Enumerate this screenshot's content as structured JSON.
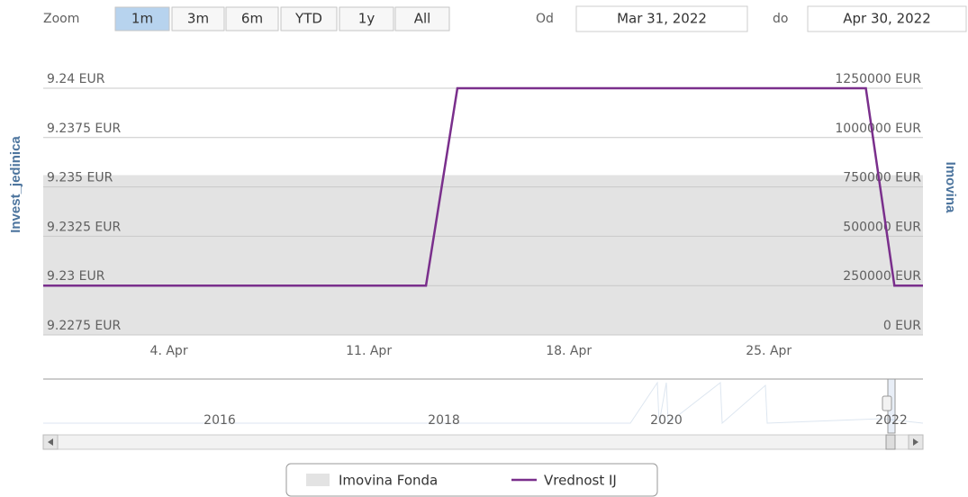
{
  "range_selector": {
    "label": "Zoom",
    "buttons": [
      "1m",
      "3m",
      "6m",
      "YTD",
      "1y",
      "All"
    ],
    "selected": 0,
    "from_label": "Od",
    "from": "Mar 31, 2022",
    "to_label": "do",
    "to": "Apr 30, 2022"
  },
  "chart_data": {
    "type": "line",
    "y_label": "Invest_jedinica",
    "y2_label": "Imovina",
    "xlim": [
      -0.4,
      30.4
    ],
    "xticks": [
      {
        "value": 4,
        "label": "4. Apr"
      },
      {
        "value": 11,
        "label": "11. Apr"
      },
      {
        "value": 18,
        "label": "18. Apr"
      },
      {
        "value": 25,
        "label": "25. Apr"
      }
    ],
    "ylim": [
      9.2275,
      9.24
    ],
    "yticks": [
      {
        "value": 9.2275,
        "label": "9.2275 EUR"
      },
      {
        "value": 9.23,
        "label": "9.23 EUR"
      },
      {
        "value": 9.2325,
        "label": "9.2325 EUR"
      },
      {
        "value": 9.235,
        "label": "9.235 EUR"
      },
      {
        "value": 9.2375,
        "label": "9.2375 EUR"
      },
      {
        "value": 9.24,
        "label": "9.24 EUR"
      }
    ],
    "y2lim": [
      0,
      1250000
    ],
    "y2ticks": [
      {
        "value": 0,
        "label": "0 EUR"
      },
      {
        "value": 250000,
        "label": "250000 EUR"
      },
      {
        "value": 500000,
        "label": "500000 EUR"
      },
      {
        "value": 750000,
        "label": "750000 EUR"
      },
      {
        "value": 1000000,
        "label": "1000000 EUR"
      },
      {
        "value": 1250000,
        "label": "1250000 EUR"
      }
    ],
    "grid": true,
    "legend": "bottom",
    "series": [
      {
        "name": "Imovina Fonda",
        "type": "area",
        "axis": "y2",
        "color": "#e3e3e3",
        "x": [
          -0.4,
          30.4
        ],
        "values": [
          810000,
          810000
        ]
      },
      {
        "name": "Vrednost IJ",
        "type": "line",
        "color": "#7a2f8c",
        "x": [
          -0.4,
          13,
          14.1,
          28.4,
          29.4,
          30.4
        ],
        "values": [
          9.23,
          9.23,
          9.24,
          9.24,
          9.23,
          9.23
        ]
      }
    ]
  },
  "navigator": {
    "labels": [
      "2016",
      "2018",
      "2020",
      "2022"
    ]
  }
}
